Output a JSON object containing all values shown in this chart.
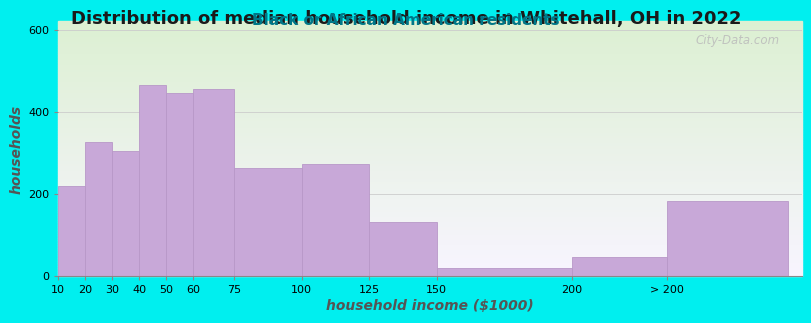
{
  "title": "Distribution of median household income in Whitehall, OH in 2022",
  "subtitle": "Black or African American residents",
  "xlabel": "household income ($1000)",
  "ylabel": "households",
  "bar_labels": [
    "10",
    "20",
    "30",
    "40",
    "50",
    "60",
    "75",
    "100",
    "125",
    "150",
    "200",
    "> 200"
  ],
  "bar_values": [
    220,
    325,
    305,
    465,
    445,
    455,
    262,
    272,
    130,
    20,
    45,
    182
  ],
  "bar_color": "#C8A8D8",
  "bar_edge_color": "#B898C8",
  "background_color": "#00EFEF",
  "ylim": [
    0,
    620
  ],
  "yticks": [
    0,
    200,
    400,
    600
  ],
  "title_fontsize": 13,
  "subtitle_fontsize": 11,
  "axis_label_fontsize": 10,
  "watermark_text": "City-Data.com",
  "watermark_color": "#BBBBBB",
  "left_edges": [
    10,
    20,
    30,
    40,
    50,
    60,
    75,
    100,
    125,
    150,
    200,
    235
  ],
  "widths": [
    10,
    10,
    10,
    10,
    10,
    15,
    25,
    25,
    25,
    50,
    35,
    45
  ],
  "xlim": [
    10,
    285
  ],
  "xtick_positions": [
    10,
    20,
    30,
    40,
    50,
    60,
    75,
    100,
    125,
    150,
    200,
    235
  ],
  "title_color": "#1a1a1a",
  "subtitle_color": "#007788",
  "axis_label_color": "#555555"
}
